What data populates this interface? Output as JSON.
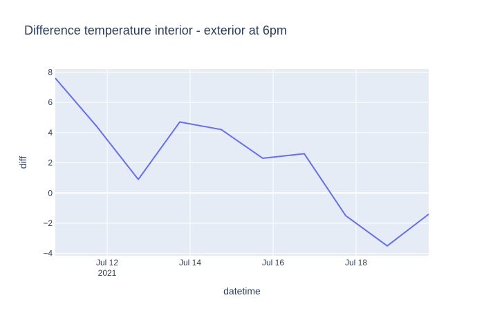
{
  "chart_data": {
    "type": "line",
    "title": "Difference temperature interior - exterior at 6pm",
    "xlabel": "datetime",
    "ylabel": "diff",
    "x": [
      "2021-07-10 18:00",
      "2021-07-11 18:00",
      "2021-07-12 18:00",
      "2021-07-13 18:00",
      "2021-07-14 18:00",
      "2021-07-15 18:00",
      "2021-07-16 18:00",
      "2021-07-17 18:00",
      "2021-07-18 18:00",
      "2021-07-19 18:00"
    ],
    "series": [
      {
        "values": [
          7.6,
          4.4,
          0.9,
          4.7,
          4.2,
          2.3,
          2.6,
          -1.5,
          -3.5,
          -1.4
        ]
      }
    ],
    "xlim": [
      "2021-07-10 18:00",
      "2021-07-19 18:00"
    ],
    "ylim": [
      -4.15,
      8.2
    ],
    "yticks": [
      -4,
      -2,
      0,
      2,
      4,
      6,
      8
    ],
    "xticks": [
      {
        "date": "2021-07-12",
        "label": "Jul 12",
        "sublabel": "2021"
      },
      {
        "date": "2021-07-14",
        "label": "Jul 14",
        "sublabel": ""
      },
      {
        "date": "2021-07-16",
        "label": "Jul 16",
        "sublabel": ""
      },
      {
        "date": "2021-07-18",
        "label": "Jul 18",
        "sublabel": ""
      }
    ],
    "grid": true,
    "colors": {
      "line": "#636efa",
      "plot_bg": "#e5ecf6",
      "grid": "#ffffff",
      "text": "#2a3f5f"
    }
  }
}
